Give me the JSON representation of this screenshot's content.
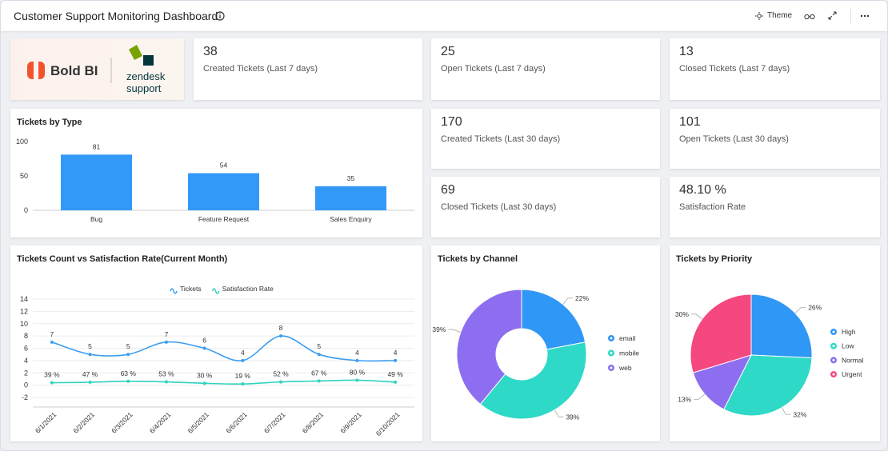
{
  "header": {
    "title": "Customer Support Monitoring Dashboard",
    "theme": "Theme"
  },
  "logo": {
    "brand": "Bold BI",
    "partner": "zendesk",
    "partner_sub": "support"
  },
  "kpis": [
    {
      "value": "38",
      "label": "Created Tickets (Last 7 days)"
    },
    {
      "value": "25",
      "label": "Open Tickets (Last 7 days)"
    },
    {
      "value": "13",
      "label": "Closed Tickets (Last 7 days)"
    },
    {
      "value": "170",
      "label": "Created Tickets (Last 30 days)"
    },
    {
      "value": "101",
      "label": "Open Tickets (Last 30 days)"
    },
    {
      "value": "69",
      "label": "Closed Tickets (Last 30 days)"
    },
    {
      "value": "48.10 %",
      "label": "Satisfaction Rate"
    }
  ],
  "chart_data": [
    {
      "type": "bar",
      "title": "Tickets by Type",
      "categories": [
        "Bug",
        "Feature Request",
        "Sales Enquiry"
      ],
      "values": [
        81,
        54,
        35
      ],
      "color": "#3399f8",
      "ylim": [
        0,
        100
      ],
      "yticks": [
        0,
        50,
        100
      ],
      "grid": false
    },
    {
      "type": "line",
      "title": "Tickets Count vs Satisfaction Rate(Current Month)",
      "categories": [
        "6/1/2021",
        "6/2/2021",
        "6/3/2021",
        "6/4/2021",
        "6/5/2021",
        "6/6/2021",
        "6/7/2021",
        "6/8/2021",
        "6/9/2021",
        "6/10/2021"
      ],
      "series": [
        {
          "name": "Tickets",
          "color": "#3b9df1",
          "values": [
            7,
            5,
            5,
            7,
            6,
            4,
            8,
            5,
            4,
            4
          ]
        },
        {
          "name": "Satisfaction Rate",
          "color": "#2fd3c0",
          "values": [
            0.39,
            0.47,
            0.63,
            0.53,
            0.3,
            0.19,
            0.52,
            0.67,
            0.8,
            0.49
          ],
          "value_labels": [
            "39 %",
            "47 %",
            "63 %",
            "53 %",
            "30 %",
            "19 %",
            "52 %",
            "67 %",
            "80 %",
            "49 %"
          ]
        }
      ],
      "ylim": [
        -2,
        14
      ],
      "yticks": [
        -2,
        0,
        2,
        4,
        6,
        8,
        10,
        12,
        14
      ],
      "grid": true
    },
    {
      "type": "donut",
      "title": "Tickets by Channel",
      "categories": [
        "email",
        "mobile",
        "web"
      ],
      "values": [
        22,
        39,
        39
      ],
      "value_labels": [
        "22%",
        "39%",
        "39%"
      ],
      "colors": [
        "#2f97f5",
        "#2fd9c7",
        "#8d6ef0"
      ]
    },
    {
      "type": "pie",
      "title": "Tickets by Priority",
      "categories": [
        "High",
        "Low",
        "Normal",
        "Urgent"
      ],
      "values": [
        26,
        32,
        13,
        30
      ],
      "value_labels": [
        "26%",
        "32%",
        "13%",
        "30%"
      ],
      "colors": [
        "#2f97f5",
        "#2fd9c7",
        "#8d6ef0",
        "#f5487f"
      ]
    }
  ]
}
